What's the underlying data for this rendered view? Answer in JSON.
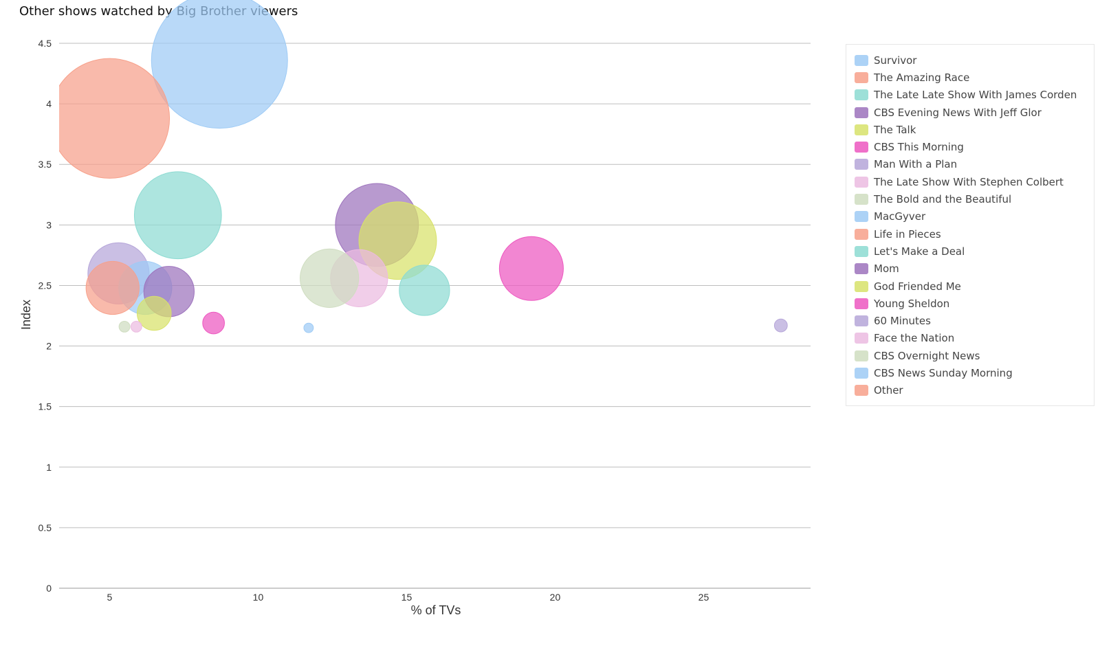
{
  "chart_data": {
    "type": "scatter",
    "title": "Other shows watched by Big Brother viewers",
    "xlabel": "% of TVs",
    "ylabel": "Index",
    "xlim": [
      3.3,
      28.6
    ],
    "ylim": [
      0,
      4.5
    ],
    "x_ticks": [
      5,
      10,
      15,
      20,
      25
    ],
    "y_ticks": [
      0,
      0.5,
      1,
      1.5,
      2,
      2.5,
      3,
      3.5,
      4,
      4.5
    ],
    "grid": "horizontal",
    "legend_position": "right",
    "series": [
      {
        "name": "Survivor",
        "color": "#9ecbf5",
        "x": 8.7,
        "y": 4.36,
        "size": 100
      },
      {
        "name": "The Amazing Race",
        "color": "#f7a08a",
        "x": 5.0,
        "y": 3.88,
        "size": 88
      },
      {
        "name": "The Late Late Show With James Corden",
        "color": "#8ddbd2",
        "x": 7.3,
        "y": 3.08,
        "size": 64
      },
      {
        "name": "CBS Evening News With Jeff Glor",
        "color": "#9d73bd",
        "x": 14.0,
        "y": 3.0,
        "size": 61
      },
      {
        "name": "The Talk",
        "color": "#d8e26a",
        "x": 14.7,
        "y": 2.87,
        "size": 57
      },
      {
        "name": "CBS This Morning",
        "color": "#ed58c0",
        "x": 19.2,
        "y": 2.64,
        "size": 47
      },
      {
        "name": "Man With a Plan",
        "color": "#b6a6d9",
        "x": 5.3,
        "y": 2.6,
        "size": 45
      },
      {
        "name": "The Late Show With Stephen Colbert",
        "color": "#ecbbe1",
        "x": 13.4,
        "y": 2.56,
        "size": 42
      },
      {
        "name": "The Bold and the Beautiful",
        "color": "#cfddc0",
        "x": 12.4,
        "y": 2.56,
        "size": 43
      },
      {
        "name": "MacGyver",
        "color": "#9ecbf5",
        "x": 6.2,
        "y": 2.48,
        "size": 39
      },
      {
        "name": "Life in Pieces",
        "color": "#f7a08a",
        "x": 5.1,
        "y": 2.48,
        "size": 39
      },
      {
        "name": "Let's Make a Deal",
        "color": "#8ddbd2",
        "x": 15.6,
        "y": 2.46,
        "size": 37
      },
      {
        "name": "Mom",
        "color": "#9d73bd",
        "x": 7.0,
        "y": 2.45,
        "size": 37
      },
      {
        "name": "God Friended Me",
        "color": "#d8e26a",
        "x": 6.5,
        "y": 2.27,
        "size": 25
      },
      {
        "name": "Young Sheldon",
        "color": "#ed58c0",
        "x": 8.5,
        "y": 2.19,
        "size": 16
      },
      {
        "name": "60 Minutes",
        "color": "#b6a6d9",
        "x": 27.6,
        "y": 2.17,
        "size": 9.5
      },
      {
        "name": "Face the Nation",
        "color": "#ecbbe1",
        "x": 5.9,
        "y": 2.16,
        "size": 8
      },
      {
        "name": "CBS Overnight News",
        "color": "#cfddc0",
        "x": 5.5,
        "y": 2.16,
        "size": 8
      },
      {
        "name": "CBS News Sunday Morning",
        "color": "#9ecbf5",
        "x": 11.7,
        "y": 2.15,
        "size": 7
      },
      {
        "name": "Other",
        "color": "#f7a08a",
        "x": null,
        "y": null,
        "size": 0
      }
    ]
  }
}
